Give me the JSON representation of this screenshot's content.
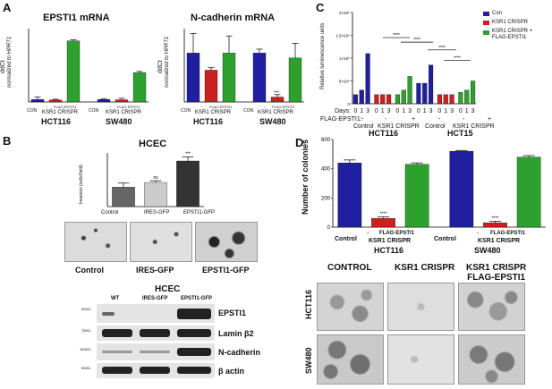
{
  "panels": {
    "A": {
      "letter": "A",
      "epsti1": {
        "title": "EPSTI1 mRNA",
        "ylabel": "ddCt",
        "ylabel_sub": "normalized to HPRT1",
        "lanes": [
          "CON",
          "-",
          "FLAG-EPSTI1"
        ],
        "group_label": "KSR1 CRISPR",
        "cells": [
          "HCT116",
          "SW480"
        ]
      },
      "ncad": {
        "title": "N-cadherin mRNA",
        "ylabel": "ddCt",
        "ylabel_sub": "normalized to HPRT1",
        "lanes": [
          "CON",
          "-",
          "FLAG-EPSTI1"
        ],
        "group_label": "KSR1 CRISPR",
        "cells": [
          "HCT116",
          "SW480"
        ],
        "sig": "***"
      }
    },
    "B": {
      "letter": "B",
      "title": "HCEC",
      "ylabel": "Invasion (cells/field)",
      "categories": [
        "Control",
        "IRES-GFP",
        "EPSTI1-GFP"
      ],
      "sig": [
        "",
        "ns",
        "***"
      ],
      "micro_labels": [
        "Control",
        "IRES-GFP",
        "EPSTI1-GFP"
      ],
      "blot_title": "HCEC",
      "blot_lanes": [
        "WT",
        "IRES-GFP",
        "EPSTI1-GFP"
      ],
      "blot_rows": [
        {
          "marker": "50KD-",
          "label": "EPSTI1"
        },
        {
          "marker": "75KD-",
          "label": "Lamin β2"
        },
        {
          "marker": "150KD-",
          "label": "N-cadherin"
        },
        {
          "marker": "50KD-",
          "label": "β actin"
        }
      ]
    },
    "C": {
      "letter": "C",
      "ylabel": "Relative luminescence units",
      "yticks": [
        "0",
        "5×10⁴",
        "1×10⁵",
        "1.5×10⁵",
        "2×10⁵"
      ],
      "days_label": "Days:",
      "days": [
        "0",
        "1",
        "3"
      ],
      "flag_label": "FLAG-EPSTI1:",
      "flag_marks": [
        "-",
        "-",
        "+",
        "-",
        "-",
        "+"
      ],
      "groups": [
        "Control",
        "KSR1 CRISPR",
        "Control",
        "KSR1 CRISPR"
      ],
      "cells": [
        "HCT116",
        "HCT15"
      ],
      "sig": [
        "****",
        "****",
        "****",
        "****"
      ],
      "legend": [
        "Con",
        "KSR1 CRISPR",
        "KSR1 CRISPR +\nFLAG-EPSTI1"
      ]
    },
    "D": {
      "letter": "D",
      "ylabel": "Number of colonies",
      "yticks": [
        "0",
        "200",
        "400",
        "600"
      ],
      "lanes": [
        "Control",
        "-",
        "FLAG-EPSTI1"
      ],
      "group_label": "KSR1 CRISPR",
      "cells": [
        "HCT116",
        "SW480"
      ],
      "sig": "****",
      "col_labels": [
        "CONTROL",
        "KSR1 CRISPR",
        "KSR1 CRISPR\nFLAG-EPSTI1"
      ],
      "row_labels": [
        "HCT116",
        "SW480"
      ]
    }
  },
  "colors": {
    "blue": "#1f1fa0",
    "red": "#cc1f1f",
    "green": "#2da02d",
    "grey": "#666666",
    "dark": "#333333"
  },
  "chart_data": [
    {
      "type": "bar",
      "title": "EPSTI1 mRNA",
      "ylabel": "ddCt normalized to HPRT1",
      "categories": [
        "HCT116 CON",
        "HCT116 KSR1 CRISPR -",
        "HCT116 KSR1 CRISPR FLAG-EPSTI1",
        "SW480 CON",
        "SW480 KSR1 CRISPR -",
        "SW480 KSR1 CRISPR FLAG-EPSTI1"
      ],
      "values": [
        1.0,
        0.8,
        25.0,
        1.0,
        0.9,
        12.0
      ],
      "errors": [
        1.0,
        0.3,
        0.4,
        0.2,
        0.6,
        0.5
      ],
      "colors": [
        "#1f1fa0",
        "#cc1f1f",
        "#2da02d",
        "#1f1fa0",
        "#cc1f1f",
        "#2da02d"
      ],
      "ylim": [
        0,
        30
      ]
    },
    {
      "type": "bar",
      "title": "N-cadherin mRNA",
      "ylabel": "ddCt normalized to HPRT1",
      "categories": [
        "HCT116 CON",
        "HCT116 KSR1 CRISPR -",
        "HCT116 KSR1 CRISPR FLAG-EPSTI1",
        "SW480 CON",
        "SW480 KSR1 CRISPR -",
        "SW480 KSR1 CRISPR FLAG-EPSTI1"
      ],
      "values": [
        1.0,
        0.65,
        1.0,
        1.0,
        0.1,
        0.9
      ],
      "errors": [
        0.4,
        0.05,
        0.35,
        0.08,
        0.05,
        0.3
      ],
      "colors": [
        "#1f1fa0",
        "#cc1f1f",
        "#2da02d",
        "#1f1fa0",
        "#cc1f1f",
        "#2da02d"
      ],
      "ylim": [
        0,
        1.5
      ]
    },
    {
      "type": "bar",
      "title": "HCEC",
      "ylabel": "Invasion (cells/field)",
      "categories": [
        "Control",
        "IRES-GFP",
        "EPSTI1-GFP"
      ],
      "values": [
        290,
        360,
        680
      ],
      "errors": [
        60,
        25,
        60
      ],
      "colors": [
        "#666666",
        "#cccccc",
        "#333333"
      ],
      "ylim": [
        0,
        800
      ]
    },
    {
      "type": "bar",
      "ylabel": "Relative luminescence units",
      "categories": [
        "HCT116 Con d0",
        "HCT116 Con d1",
        "HCT116 Con d3",
        "HCT116 KSR1 d0",
        "HCT116 KSR1 d1",
        "HCT116 KSR1 d3",
        "HCT116 KSR1+FLAG d0",
        "HCT116 KSR1+FLAG d1",
        "HCT116 KSR1+FLAG d3",
        "HCT15 Con d0",
        "HCT15 Con d1",
        "HCT15 Con d3",
        "HCT15 KSR1 d0",
        "HCT15 KSR1 d1",
        "HCT15 KSR1 d3",
        "HCT15 KSR1+FLAG d0",
        "HCT15 KSR1+FLAG d1",
        "HCT15 KSR1+FLAG d3"
      ],
      "values": [
        20000,
        30000,
        110000,
        20000,
        20000,
        20000,
        20000,
        30000,
        60000,
        45000,
        45000,
        85000,
        20000,
        20000,
        20000,
        25000,
        30000,
        50000
      ],
      "colors": [
        "#1f1fa0",
        "#1f1fa0",
        "#1f1fa0",
        "#cc1f1f",
        "#cc1f1f",
        "#cc1f1f",
        "#2da02d",
        "#2da02d",
        "#2da02d",
        "#1f1fa0",
        "#1f1fa0",
        "#1f1fa0",
        "#cc1f1f",
        "#cc1f1f",
        "#cc1f1f",
        "#2da02d",
        "#2da02d",
        "#2da02d"
      ],
      "ylim": [
        0,
        200000
      ]
    },
    {
      "type": "bar",
      "ylabel": "Number of colonies",
      "categories": [
        "HCT116 Control",
        "HCT116 KSR1 CRISPR -",
        "HCT116 KSR1 CRISPR FLAG-EPSTI1",
        "SW480 Control",
        "SW480 KSR1 CRISPR -",
        "SW480 KSR1 CRISPR FLAG-EPSTI1"
      ],
      "values": [
        440,
        60,
        430,
        520,
        30,
        480
      ],
      "errors": [
        20,
        10,
        10,
        5,
        10,
        10
      ],
      "colors": [
        "#1f1fa0",
        "#cc1f1f",
        "#2da02d",
        "#1f1fa0",
        "#cc1f1f",
        "#2da02d"
      ],
      "ylim": [
        0,
        600
      ]
    }
  ]
}
